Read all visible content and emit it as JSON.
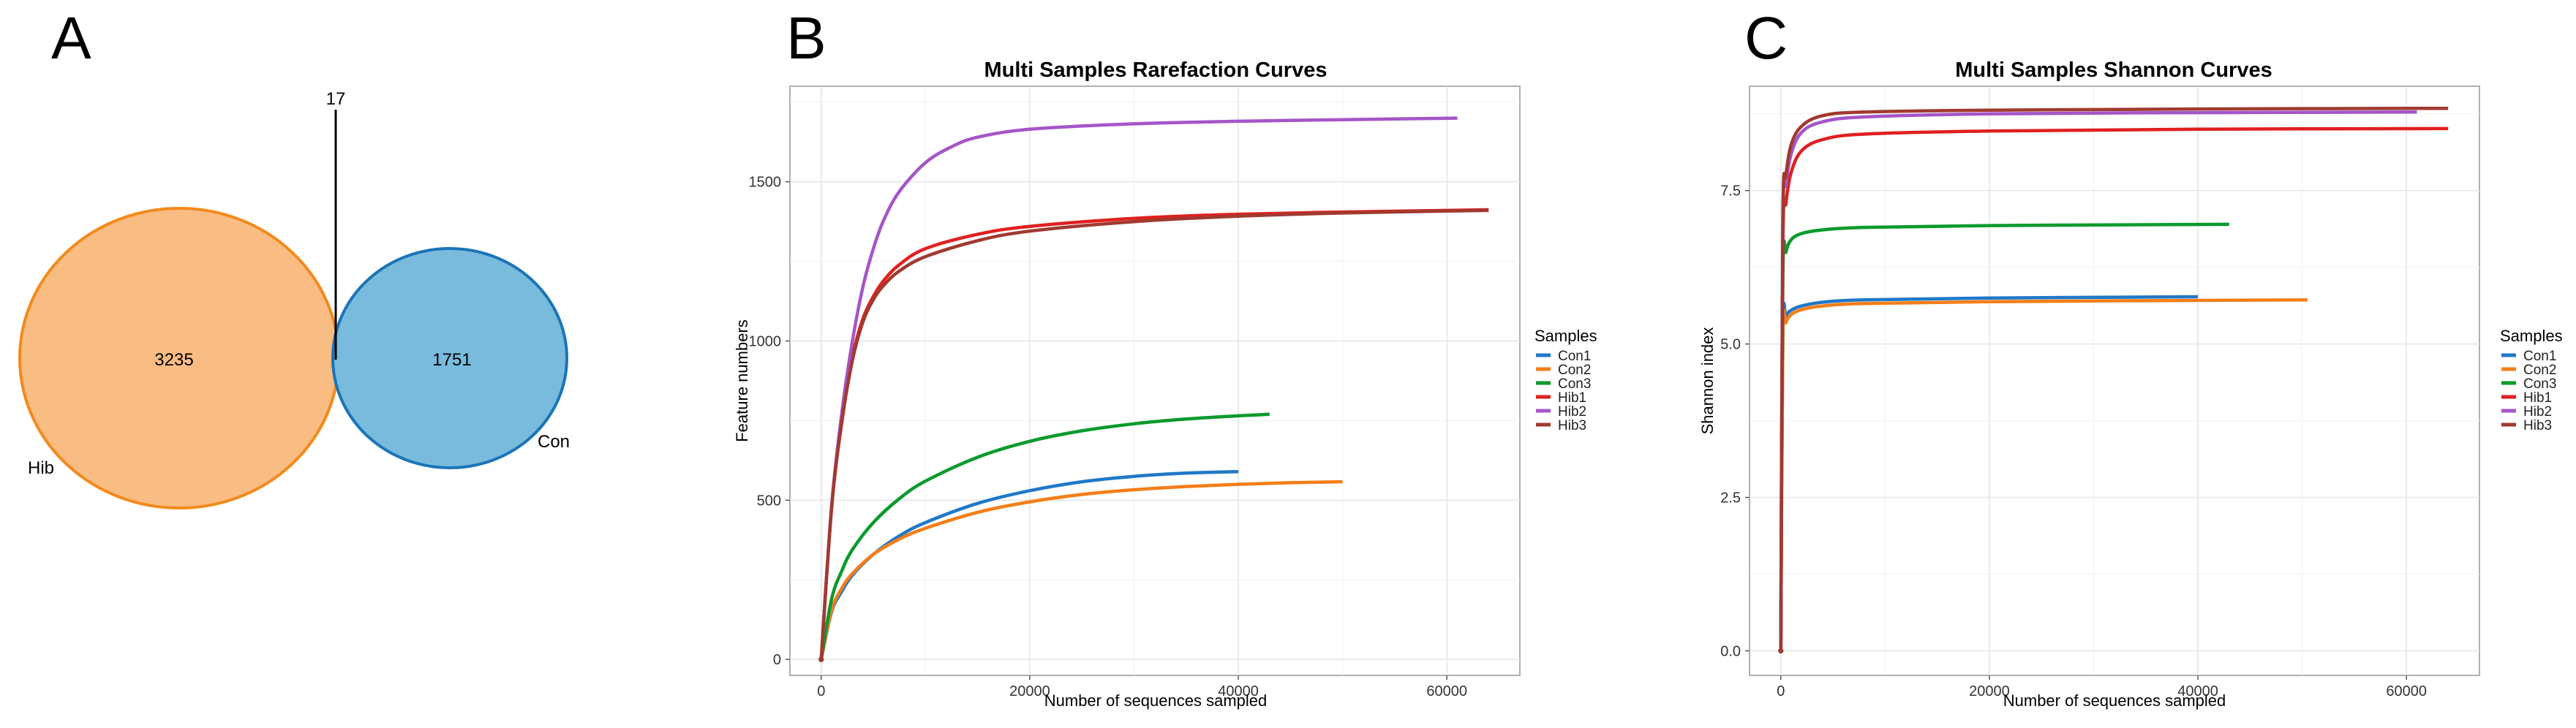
{
  "panels": {
    "A": {
      "letter": "A",
      "venn": {
        "left": {
          "name": "Hib",
          "count": "3235",
          "fill": "#f9bc82",
          "stroke": "#f28a1c"
        },
        "right": {
          "name": "Con",
          "count": "1751",
          "fill": "#79bbdc",
          "stroke": "#1b74b8"
        },
        "overlap_count": "17"
      }
    },
    "B": {
      "letter": "B"
    },
    "C": {
      "letter": "C"
    }
  },
  "chart_data": [
    {
      "type": "line",
      "title": "Multi Samples Rarefaction Curves",
      "xlabel": "Number of sequences sampled",
      "ylabel": "Feature numbers",
      "xlim": [
        -3000,
        67000
      ],
      "ylim": [
        -50,
        1800
      ],
      "xticks": [
        0,
        20000,
        40000,
        60000
      ],
      "yticks": [
        0,
        500,
        1000,
        1500
      ],
      "xtick_labels": [
        "0",
        "20000",
        "40000",
        "60000"
      ],
      "ytick_labels": [
        "0",
        "500",
        "1000",
        "1500"
      ],
      "grid": true,
      "legend": {
        "title": "Samples",
        "position": "right"
      },
      "series": [
        {
          "name": "Con1",
          "color": "#1f78c8",
          "x": [
            0,
            1000,
            2000,
            3000,
            5000,
            7500,
            10000,
            15000,
            20000,
            25000,
            30000,
            35000,
            40000
          ],
          "values": [
            0,
            150,
            215,
            265,
            330,
            388,
            430,
            490,
            530,
            558,
            575,
            585,
            590
          ]
        },
        {
          "name": "Con2",
          "color": "#f47e18",
          "x": [
            0,
            1000,
            2000,
            3000,
            5000,
            7500,
            10000,
            15000,
            20000,
            25000,
            30000,
            35000,
            40000,
            45000,
            50000
          ],
          "values": [
            0,
            155,
            225,
            270,
            330,
            378,
            412,
            462,
            495,
            518,
            533,
            543,
            550,
            555,
            558
          ]
        },
        {
          "name": "Con3",
          "color": "#0a9a2c",
          "x": [
            0,
            1000,
            2000,
            3000,
            5000,
            7500,
            10000,
            15000,
            20000,
            25000,
            30000,
            35000,
            40000,
            43000
          ],
          "values": [
            0,
            190,
            280,
            345,
            430,
            505,
            560,
            635,
            685,
            718,
            740,
            755,
            765,
            770
          ]
        },
        {
          "name": "Hib1",
          "color": "#e02020",
          "x": [
            0,
            1000,
            2000,
            3000,
            4000,
            5000,
            6000,
            7500,
            10000,
            15000,
            20000,
            30000,
            40000,
            50000,
            60000,
            64000
          ],
          "values": [
            0,
            480,
            760,
            950,
            1070,
            1140,
            1190,
            1240,
            1290,
            1335,
            1360,
            1385,
            1398,
            1405,
            1410,
            1412
          ]
        },
        {
          "name": "Hib2",
          "color": "#a555c8",
          "x": [
            0,
            1000,
            2000,
            3000,
            4000,
            5000,
            6000,
            7500,
            10000,
            12500,
            15000,
            20000,
            30000,
            40000,
            50000,
            61000
          ],
          "values": [
            0,
            480,
            780,
            1000,
            1170,
            1290,
            1380,
            1470,
            1560,
            1610,
            1640,
            1665,
            1682,
            1690,
            1695,
            1700
          ]
        },
        {
          "name": "Hib3",
          "color": "#a03a30",
          "x": [
            0,
            1000,
            2000,
            3000,
            4000,
            5000,
            6000,
            7500,
            10000,
            15000,
            20000,
            30000,
            40000,
            50000,
            60000,
            64000
          ],
          "values": [
            0,
            475,
            750,
            940,
            1060,
            1130,
            1175,
            1220,
            1265,
            1315,
            1345,
            1375,
            1392,
            1402,
            1408,
            1410
          ]
        }
      ]
    },
    {
      "type": "line",
      "title": "Multi Samples Shannon Curves",
      "xlabel": "Number of sequences sampled",
      "ylabel": "Shannon index",
      "xlim": [
        -3000,
        67000
      ],
      "ylim": [
        -0.4,
        9.2
      ],
      "xticks": [
        0,
        20000,
        40000,
        60000
      ],
      "yticks": [
        0,
        2.5,
        5,
        7.5
      ],
      "xtick_labels": [
        "0",
        "20000",
        "40000",
        "60000"
      ],
      "ytick_labels": [
        "0.0",
        "2.5",
        "5.0",
        "7.5"
      ],
      "grid": true,
      "legend": {
        "title": "Samples",
        "position": "right"
      },
      "series": [
        {
          "name": "Con1",
          "color": "#1f78c8",
          "x": [
            0,
            200,
            500,
            1000,
            2000,
            4000,
            8000,
            20000,
            40000
          ],
          "values": [
            0,
            5.2,
            5.45,
            5.55,
            5.62,
            5.68,
            5.72,
            5.75,
            5.77
          ]
        },
        {
          "name": "Con2",
          "color": "#f47e18",
          "x": [
            0,
            200,
            500,
            1000,
            2000,
            4000,
            8000,
            20000,
            40000,
            50500
          ],
          "values": [
            0,
            5.1,
            5.35,
            5.48,
            5.56,
            5.62,
            5.66,
            5.69,
            5.71,
            5.72
          ]
        },
        {
          "name": "Con3",
          "color": "#0a9a2c",
          "x": [
            0,
            200,
            500,
            1000,
            2000,
            4000,
            8000,
            20000,
            43000
          ],
          "values": [
            0,
            6.1,
            6.5,
            6.7,
            6.8,
            6.86,
            6.9,
            6.93,
            6.95
          ]
        },
        {
          "name": "Hib1",
          "color": "#e02020",
          "x": [
            0,
            200,
            500,
            1000,
            2000,
            4000,
            8000,
            20000,
            40000,
            64000
          ],
          "values": [
            0,
            6.6,
            7.3,
            7.8,
            8.15,
            8.33,
            8.42,
            8.47,
            8.5,
            8.51
          ]
        },
        {
          "name": "Hib2",
          "color": "#a555c8",
          "x": [
            0,
            200,
            500,
            1000,
            2000,
            4000,
            8000,
            20000,
            40000,
            61000
          ],
          "values": [
            0,
            6.9,
            7.6,
            8.1,
            8.45,
            8.62,
            8.7,
            8.75,
            8.77,
            8.78
          ]
        },
        {
          "name": "Hib3",
          "color": "#a03a30",
          "x": [
            0,
            200,
            500,
            1000,
            2000,
            4000,
            8000,
            20000,
            40000,
            64000
          ],
          "values": [
            0,
            7.0,
            7.75,
            8.25,
            8.55,
            8.72,
            8.78,
            8.81,
            8.83,
            8.84
          ]
        }
      ]
    }
  ]
}
